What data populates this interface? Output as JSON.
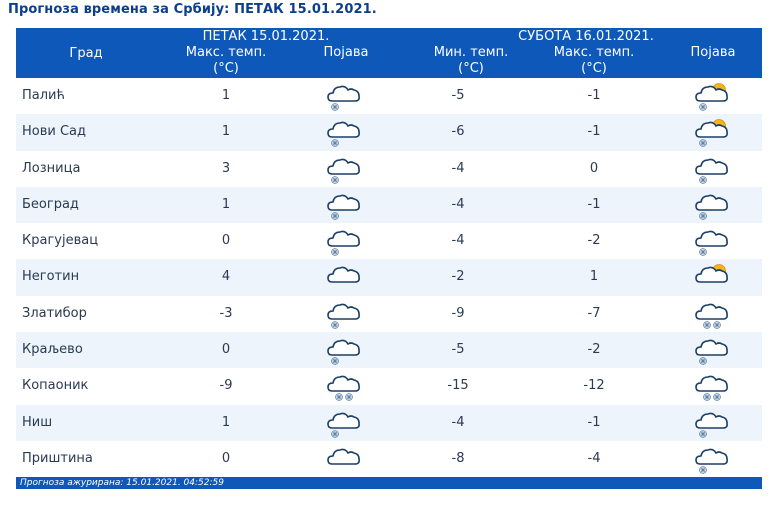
{
  "page": {
    "title": "Прогноза времена за Србију: ПЕТАК  15.01.2021."
  },
  "header": {
    "city_label": "Град",
    "day1_title": "ПЕТАК  15.01.2021.",
    "day1_max_label": "Макс. темп.",
    "day1_max_unit": "(°C)",
    "day1_phen_label": "Појава",
    "day2_title": "СУБОТА  16.01.2021.",
    "day2_min_label": "Мин. темп.",
    "day2_min_unit": "(°C)",
    "day2_max_label": "Макс. темп.",
    "day2_max_unit": "(°C)",
    "day2_phen_label": "Појава"
  },
  "rows": [
    {
      "city": "Палић",
      "d1_max": "1",
      "d1_icon": "cloud-snow-icon",
      "d2_min": "-5",
      "d2_max": "-1",
      "d2_icon": "sun-cloud-snow-icon"
    },
    {
      "city": "Нови Сад",
      "d1_max": "1",
      "d1_icon": "cloud-snow-icon",
      "d2_min": "-6",
      "d2_max": "-1",
      "d2_icon": "sun-cloud-snow-icon"
    },
    {
      "city": "Лозница",
      "d1_max": "3",
      "d1_icon": "cloud-snow-icon",
      "d2_min": "-4",
      "d2_max": "0",
      "d2_icon": "cloud-snow-icon"
    },
    {
      "city": "Београд",
      "d1_max": "1",
      "d1_icon": "cloud-snow-icon",
      "d2_min": "-4",
      "d2_max": "-1",
      "d2_icon": "cloud-snow-icon"
    },
    {
      "city": "Крагујевац",
      "d1_max": "0",
      "d1_icon": "cloud-snow-icon",
      "d2_min": "-4",
      "d2_max": "-2",
      "d2_icon": "cloud-snow-icon"
    },
    {
      "city": "Неготин",
      "d1_max": "4",
      "d1_icon": "cloud-icon",
      "d2_min": "-2",
      "d2_max": "1",
      "d2_icon": "sun-cloud-icon"
    },
    {
      "city": "Златибор",
      "d1_max": "-3",
      "d1_icon": "cloud-snow-icon",
      "d2_min": "-9",
      "d2_max": "-7",
      "d2_icon": "cloud-heavy-snow-icon"
    },
    {
      "city": "Краљево",
      "d1_max": "0",
      "d1_icon": "cloud-snow-icon",
      "d2_min": "-5",
      "d2_max": "-2",
      "d2_icon": "cloud-snow-icon"
    },
    {
      "city": "Копаоник",
      "d1_max": "-9",
      "d1_icon": "cloud-heavy-snow-icon",
      "d2_min": "-15",
      "d2_max": "-12",
      "d2_icon": "cloud-heavy-snow-icon"
    },
    {
      "city": "Ниш",
      "d1_max": "1",
      "d1_icon": "cloud-snow-icon",
      "d2_min": "-4",
      "d2_max": "-1",
      "d2_icon": "cloud-snow-icon"
    },
    {
      "city": "Приштина",
      "d1_max": "0",
      "d1_icon": "cloud-icon",
      "d2_min": "-8",
      "d2_max": "-4",
      "d2_icon": "cloud-snow-icon"
    }
  ],
  "footer": {
    "updated": "Прогноза ажурирана:  15.01.2021.  04:52:59"
  },
  "colors": {
    "header_bg": "#0d58b8",
    "row_alt_bg": "#edf4fc",
    "title": "#0b3f8c"
  }
}
